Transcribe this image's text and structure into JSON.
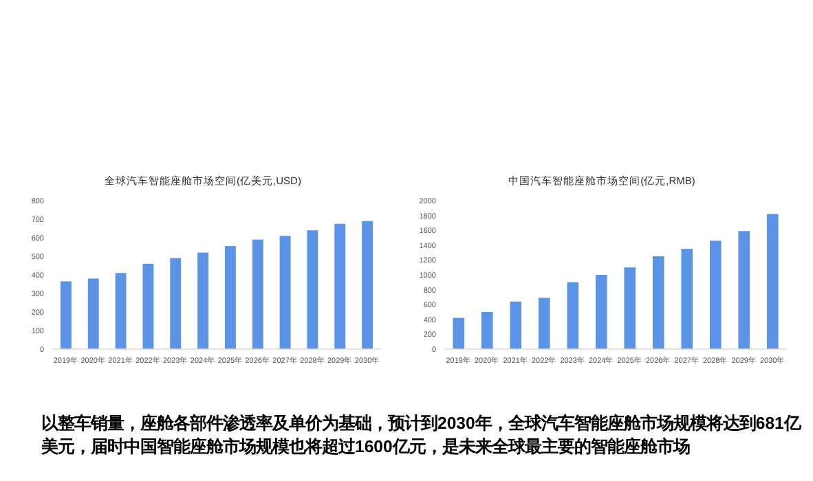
{
  "chart_data": [
    {
      "type": "bar",
      "title": "全球汽车智能座舱市场空间(亿美元,USD)",
      "categories": [
        "2019年",
        "2020年",
        "2021年",
        "2022年",
        "2023年",
        "2024年",
        "2025年",
        "2026年",
        "2027年",
        "2028年",
        "2029年",
        "2030年"
      ],
      "values": [
        365,
        380,
        410,
        460,
        490,
        520,
        555,
        590,
        610,
        640,
        675,
        690
      ],
      "color": "#5b93e6",
      "ylim": [
        0,
        800
      ],
      "yticks": [
        0,
        100,
        200,
        300,
        400,
        500,
        600,
        700,
        800
      ],
      "annotations": [
        "以整车销量，座舱各部件渗透率及单价为基础，预计到2030年，全球汽车智能座舱市场规模将达到681亿美元，届时中国智能座舱市场规模也将超过1600亿元，是未来全球最主要的智能座舱市场"
      ]
    },
    {
      "type": "bar",
      "title": "中国汽车智能座舱市场空间(亿元,RMB)",
      "categories": [
        "2019年",
        "2020年",
        "2021年",
        "2022年",
        "2023年",
        "2024年",
        "2025年",
        "2026年",
        "2027年",
        "2028年",
        "2029年",
        "2030年"
      ],
      "values": [
        420,
        500,
        640,
        690,
        900,
        1000,
        1100,
        1250,
        1350,
        1460,
        1590,
        1820
      ],
      "color": "#5b93e6",
      "ylim": [
        0,
        2000
      ],
      "yticks": [
        0,
        200,
        400,
        600,
        800,
        1000,
        1200,
        1400,
        1600,
        1800,
        2000
      ]
    }
  ]
}
